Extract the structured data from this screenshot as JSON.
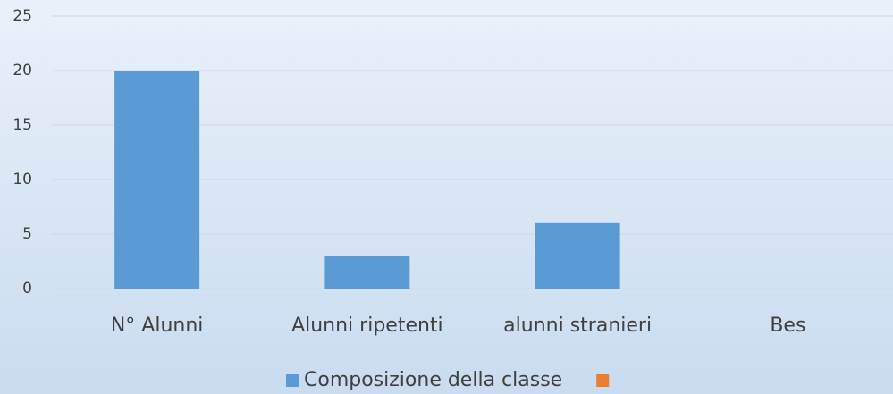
{
  "chart_data": {
    "type": "bar",
    "categories": [
      "N° Alunni",
      "Alunni ripetenti",
      "alunni stranieri",
      "Bes"
    ],
    "series": [
      {
        "name": "Composizione della classe",
        "color": "#5b9bd5",
        "values": [
          20,
          3,
          6,
          0
        ]
      },
      {
        "color": "#ed7d31",
        "values": [
          null,
          null,
          null,
          null
        ]
      }
    ],
    "ylim": [
      0,
      25
    ],
    "yticks": [
      0,
      5,
      10,
      15,
      20,
      25
    ],
    "grid": true,
    "legend": "bottom"
  }
}
